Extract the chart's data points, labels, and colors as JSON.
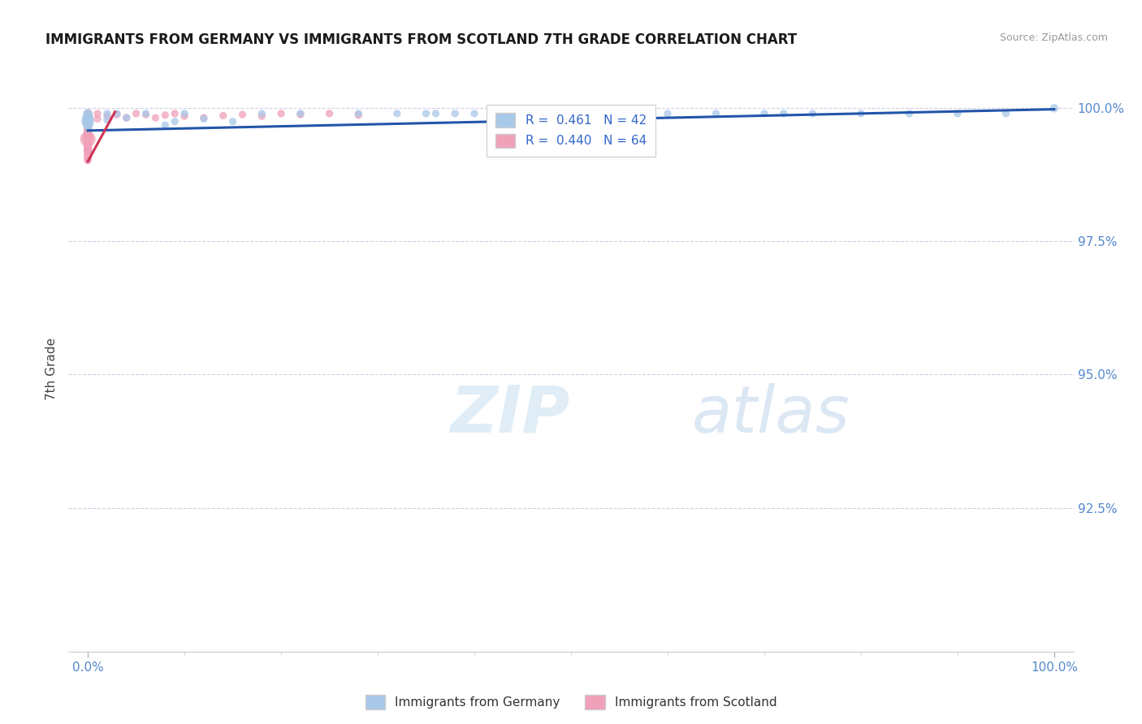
{
  "title": "IMMIGRANTS FROM GERMANY VS IMMIGRANTS FROM SCOTLAND 7TH GRADE CORRELATION CHART",
  "source": "Source: ZipAtlas.com",
  "ylabel": "7th Grade",
  "germany_color": "#a8c8e8",
  "scotland_color": "#f0a0b8",
  "germany_line_color": "#2255aa",
  "scotland_line_color": "#cc3355",
  "watermark_text": "ZIPatlas",
  "background_color": "#ffffff",
  "ylim": [
    0.898,
    1.004
  ],
  "xlim": [
    -0.02,
    1.02
  ],
  "yticks": [
    0.925,
    0.95,
    0.975,
    1.0
  ],
  "ytick_labels": [
    "92.5%",
    "95.0%",
    "97.5%",
    "100.0%"
  ],
  "xtick_labels": [
    "0.0%",
    "100.0%"
  ],
  "legend_label_color": "#3366cc",
  "axis_tick_color": "#5588cc",
  "germany_scatter_x": [
    0.0,
    0.0,
    0.0,
    0.0,
    0.0,
    0.0,
    0.02,
    0.02,
    0.03,
    0.04,
    0.06,
    0.08,
    0.09,
    0.1,
    0.12,
    0.15,
    0.18,
    0.22,
    0.28,
    0.32,
    0.36,
    0.4,
    0.45,
    0.5,
    0.55,
    0.6,
    0.65,
    0.7,
    0.75,
    0.8,
    0.85,
    0.9,
    0.95,
    1.0,
    0.35,
    0.38,
    0.42,
    0.44,
    0.48,
    0.52,
    0.58,
    0.72
  ],
  "germany_scatter_y": [
    0.999,
    0.9985,
    0.998,
    0.9975,
    0.997,
    0.9965,
    0.999,
    0.9978,
    0.999,
    0.9982,
    0.999,
    0.9968,
    0.9975,
    0.999,
    0.998,
    0.9975,
    0.999,
    0.999,
    0.999,
    0.999,
    0.999,
    0.999,
    0.999,
    0.999,
    0.999,
    0.999,
    0.999,
    0.999,
    0.999,
    0.999,
    0.999,
    0.999,
    0.999,
    1.0,
    0.999,
    0.999,
    0.999,
    0.999,
    0.999,
    0.999,
    0.999,
    0.999
  ],
  "germany_scatter_sizes": [
    60,
    80,
    100,
    120,
    80,
    50,
    40,
    40,
    40,
    40,
    40,
    40,
    40,
    40,
    40,
    40,
    40,
    40,
    40,
    40,
    40,
    40,
    40,
    40,
    40,
    40,
    40,
    40,
    40,
    40,
    40,
    40,
    40,
    50,
    40,
    40,
    40,
    40,
    40,
    40,
    40,
    40
  ],
  "scotland_scatter_x": [
    0.0,
    0.0,
    0.0,
    0.0,
    0.0,
    0.0,
    0.0,
    0.0,
    0.0,
    0.0,
    0.0,
    0.0,
    0.0,
    0.0,
    0.0,
    0.0,
    0.0,
    0.0,
    0.0,
    0.0,
    0.0,
    0.0,
    0.0,
    0.0,
    0.0,
    0.0,
    0.0,
    0.0,
    0.0,
    0.0,
    0.0,
    0.0,
    0.0,
    0.0,
    0.0,
    0.0,
    0.01,
    0.01,
    0.02,
    0.03,
    0.04,
    0.05,
    0.06,
    0.07,
    0.08,
    0.09,
    0.1,
    0.12,
    0.14,
    0.16,
    0.18,
    0.2,
    0.22,
    0.25,
    0.28,
    0.0,
    0.0,
    0.0,
    0.0,
    0.0,
    0.0,
    0.0,
    0.0,
    0.0
  ],
  "scotland_scatter_y": [
    0.999,
    0.9988,
    0.9986,
    0.9984,
    0.9982,
    0.998,
    0.9978,
    0.9976,
    0.9974,
    0.9972,
    0.997,
    0.9968,
    0.9966,
    0.9964,
    0.9962,
    0.996,
    0.9958,
    0.9956,
    0.9954,
    0.9952,
    0.995,
    0.9948,
    0.9946,
    0.9944,
    0.9942,
    0.994,
    0.9938,
    0.9936,
    0.9934,
    0.9932,
    0.993,
    0.9928,
    0.9926,
    0.9924,
    0.9922,
    0.992,
    0.999,
    0.998,
    0.9985,
    0.9988,
    0.9982,
    0.999,
    0.9988,
    0.9982,
    0.9987,
    0.999,
    0.9985,
    0.9982,
    0.9986,
    0.9988,
    0.9985,
    0.999,
    0.9988,
    0.999,
    0.9987,
    0.9918,
    0.9916,
    0.9914,
    0.9912,
    0.991,
    0.9908,
    0.9906,
    0.9904,
    0.9902
  ],
  "scotland_scatter_sizes": [
    50,
    50,
    50,
    50,
    50,
    50,
    50,
    50,
    50,
    50,
    50,
    50,
    50,
    50,
    50,
    50,
    50,
    50,
    50,
    50,
    50,
    50,
    70,
    90,
    180,
    50,
    50,
    50,
    50,
    50,
    50,
    50,
    50,
    50,
    50,
    50,
    40,
    40,
    40,
    40,
    40,
    40,
    40,
    40,
    40,
    40,
    40,
    40,
    40,
    40,
    40,
    40,
    40,
    40,
    40,
    40,
    40,
    40,
    40,
    40,
    40,
    40,
    40,
    40
  ],
  "germany_trend_x": [
    0.0,
    1.0
  ],
  "germany_trend_y": [
    0.9958,
    0.9998
  ],
  "scotland_trend_x": [
    0.0,
    0.028
  ],
  "scotland_trend_y": [
    0.99,
    0.9993
  ]
}
